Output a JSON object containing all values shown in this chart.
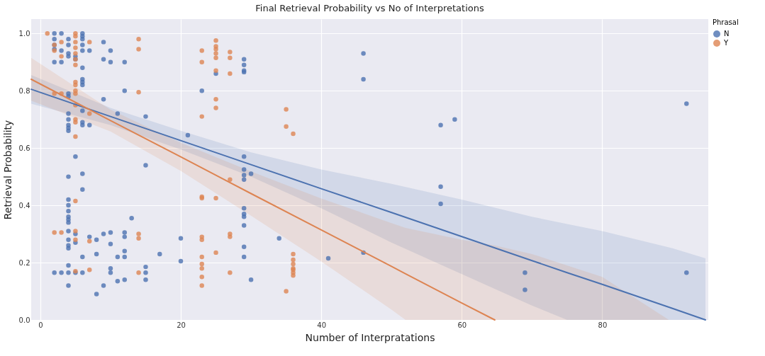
{
  "chart_data": {
    "type": "scatter",
    "title": "Final Retrieval Probability vs No of Interpretations",
    "xlabel": "Number of Interpratations",
    "ylabel": "Retrieval Probability",
    "legend_title": "Phrasal",
    "legend": "right",
    "grid": true,
    "xlim": [
      -1.3,
      95.1
    ],
    "xticks": [
      0,
      20,
      40,
      60,
      80
    ],
    "ylim": [
      0,
      1.05
    ],
    "yticks": [
      {
        "value": 0,
        "label": "0.0"
      },
      0.2,
      0.4,
      0.6,
      0.8,
      {
        "value": 1,
        "label": "1.0"
      }
    ],
    "series": [
      {
        "name": "N",
        "type": "scatter",
        "marker": "circle",
        "color": "#4c72b0",
        "x": [
          2,
          2,
          2,
          2,
          2,
          2,
          3,
          3,
          3,
          3,
          4,
          4,
          4,
          4,
          4,
          4,
          4,
          4,
          4,
          4,
          4,
          4,
          4,
          4,
          4,
          4,
          4,
          4,
          4,
          4,
          4,
          4,
          4,
          4,
          4,
          5,
          5,
          5,
          5,
          5,
          5,
          6,
          6,
          6,
          6,
          6,
          6,
          6,
          6,
          6,
          6,
          6,
          6,
          6,
          6,
          6,
          6,
          7,
          7,
          7,
          8,
          8,
          8,
          9,
          9,
          9,
          9,
          9,
          10,
          10,
          10,
          10,
          10,
          10,
          11,
          11,
          11,
          12,
          12,
          12,
          12,
          12,
          12,
          12,
          13,
          15,
          15,
          15,
          15,
          15,
          17,
          20,
          20,
          21,
          23,
          25,
          29,
          29,
          29,
          29,
          29,
          29,
          29,
          29,
          29,
          29,
          29,
          29,
          29,
          29,
          30,
          30,
          34,
          41,
          46,
          46,
          46,
          57,
          57,
          57,
          59,
          69,
          69,
          92,
          92
        ],
        "values": [
          1.0,
          0.98,
          0.96,
          0.945,
          0.9,
          0.165,
          1.0,
          0.94,
          0.9,
          0.165,
          0.98,
          0.96,
          0.93,
          0.92,
          0.79,
          0.78,
          0.72,
          0.7,
          0.68,
          0.67,
          0.66,
          0.5,
          0.42,
          0.4,
          0.38,
          0.36,
          0.35,
          0.34,
          0.31,
          0.28,
          0.26,
          0.25,
          0.19,
          0.165,
          0.12,
          0.92,
          0.91,
          0.57,
          0.3,
          0.27,
          0.165,
          1.0,
          0.99,
          0.98,
          0.96,
          0.94,
          0.88,
          0.84,
          0.83,
          0.82,
          0.73,
          0.69,
          0.68,
          0.51,
          0.455,
          0.22,
          0.165,
          0.94,
          0.68,
          0.29,
          0.28,
          0.23,
          0.09,
          0.97,
          0.91,
          0.77,
          0.3,
          0.12,
          0.94,
          0.9,
          0.305,
          0.265,
          0.18,
          0.165,
          0.72,
          0.22,
          0.135,
          0.9,
          0.8,
          0.305,
          0.29,
          0.24,
          0.22,
          0.14,
          0.355,
          0.71,
          0.54,
          0.185,
          0.165,
          0.14,
          0.23,
          0.285,
          0.205,
          0.645,
          0.8,
          0.86,
          0.91,
          0.89,
          0.87,
          0.865,
          0.57,
          0.525,
          0.505,
          0.49,
          0.39,
          0.37,
          0.36,
          0.33,
          0.255,
          0.22,
          0.51,
          0.14,
          0.285,
          0.215,
          0.93,
          0.84,
          0.235,
          0.68,
          0.465,
          0.405,
          0.7,
          0.165,
          0.105,
          0.755,
          0.165
        ]
      },
      {
        "name": "Y",
        "type": "scatter",
        "marker": "circle",
        "color": "#dd8452",
        "x": [
          1,
          2,
          2,
          2,
          2,
          3,
          3,
          3,
          3,
          5,
          5,
          5,
          5,
          5,
          5,
          5,
          5,
          5,
          5,
          5,
          5,
          5,
          5,
          5,
          5,
          5,
          5,
          5,
          7,
          7,
          7,
          7,
          14,
          14,
          14,
          14,
          14,
          14,
          23,
          23,
          23,
          23,
          23,
          23,
          23,
          23,
          23,
          23,
          23,
          23,
          25,
          25,
          25,
          25,
          25,
          25,
          25,
          25,
          25,
          25,
          27,
          27,
          27,
          27,
          27,
          27,
          27,
          35,
          35,
          35,
          36,
          36,
          36,
          36,
          36,
          36,
          36,
          36
        ],
        "values": [
          1.0,
          0.96,
          0.94,
          0.79,
          0.305,
          0.97,
          0.92,
          0.79,
          0.305,
          1.0,
          0.99,
          0.97,
          0.95,
          0.93,
          0.91,
          0.89,
          0.83,
          0.82,
          0.8,
          0.79,
          0.75,
          0.7,
          0.69,
          0.64,
          0.415,
          0.31,
          0.28,
          0.17,
          0.97,
          0.72,
          0.275,
          0.175,
          0.98,
          0.945,
          0.795,
          0.3,
          0.285,
          0.165,
          0.94,
          0.9,
          0.71,
          0.43,
          0.425,
          0.29,
          0.28,
          0.22,
          0.195,
          0.18,
          0.15,
          0.12,
          0.975,
          0.955,
          0.945,
          0.93,
          0.915,
          0.87,
          0.77,
          0.74,
          0.425,
          0.235,
          0.935,
          0.915,
          0.86,
          0.49,
          0.3,
          0.29,
          0.165,
          0.735,
          0.675,
          0.1,
          0.65,
          0.23,
          0.21,
          0.195,
          0.18,
          0.175,
          0.165,
          0.155
        ]
      },
      {
        "type": "line",
        "marker": "none",
        "color": "#4c72b0",
        "x": [
          -1.3,
          10,
          20,
          30,
          40,
          50,
          60,
          70,
          75,
          80,
          90,
          94.7
        ],
        "values": [
          0.805,
          0.71,
          0.626,
          0.542,
          0.458,
          0.375,
          0.291,
          0.207,
          0.165,
          0.124,
          0.04,
          0
        ],
        "lower": [
          0.755,
          0.68,
          0.595,
          0.5,
          0.39,
          0.27,
          0.16,
          0.05,
          0,
          0,
          0,
          0
        ],
        "upper": [
          0.855,
          0.74,
          0.66,
          0.585,
          0.525,
          0.475,
          0.42,
          0.36,
          0.335,
          0.31,
          0.25,
          0.215
        ]
      },
      {
        "type": "line",
        "marker": "none",
        "color": "#dd8452",
        "x": [
          -1.3,
          10,
          20,
          30,
          40,
          50,
          52,
          60,
          64.7,
          70,
          80,
          89.5
        ],
        "values": [
          0.84,
          0.696,
          0.569,
          0.441,
          0.314,
          0.187,
          0.161,
          0.059,
          0,
          null,
          null,
          null
        ],
        "lower": [
          0.765,
          0.658,
          0.52,
          0.364,
          0.204,
          0.036,
          0,
          0,
          0,
          0,
          0,
          0
        ],
        "upper": [
          0.915,
          0.734,
          0.618,
          0.518,
          0.424,
          0.338,
          0.321,
          0.28,
          0.26,
          0.23,
          0.15,
          0
        ]
      }
    ]
  }
}
